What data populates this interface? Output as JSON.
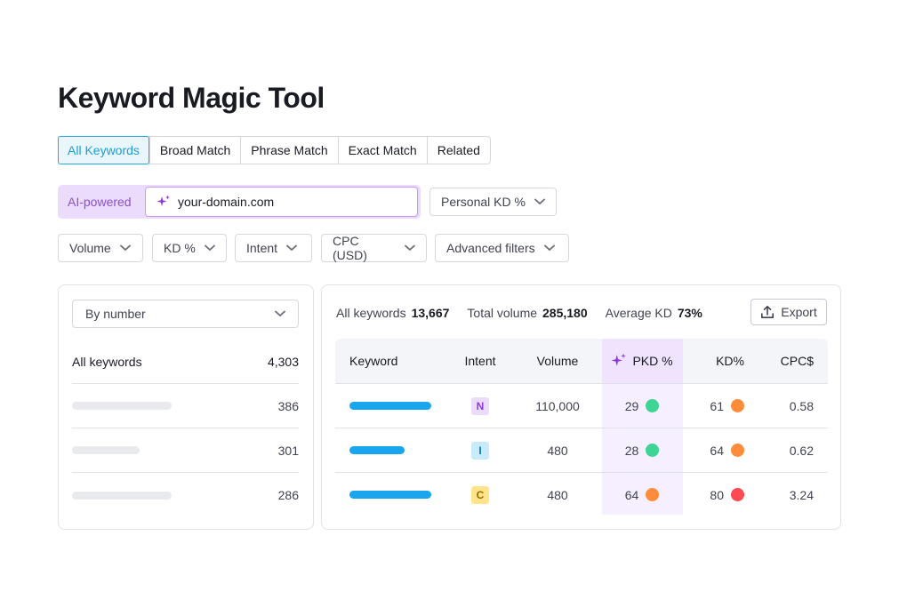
{
  "page": {
    "title": "Keyword Magic Tool"
  },
  "tabs": [
    {
      "label": "All Keywords",
      "active": true
    },
    {
      "label": "Broad Match",
      "active": false
    },
    {
      "label": "Phrase Match",
      "active": false
    },
    {
      "label": "Exact Match",
      "active": false
    },
    {
      "label": "Related",
      "active": false
    }
  ],
  "ai_search": {
    "label": "AI-powered",
    "value": "your-domain.com",
    "icon": "sparkle-icon"
  },
  "personal_kd": {
    "label": "Personal KD %"
  },
  "filters": {
    "volume": "Volume",
    "kd": "KD %",
    "intent": "Intent",
    "cpc": "CPC (USD)",
    "advanced": "Advanced filters"
  },
  "left_panel": {
    "sort_label": "By number",
    "total_label": "All keywords",
    "total_value": "4,303",
    "groups": [
      {
        "count": "386"
      },
      {
        "count": "301"
      },
      {
        "count": "286"
      }
    ]
  },
  "stats": {
    "all_keywords_label": "All keywords",
    "all_keywords_value": "13,667",
    "total_volume_label": "Total volume",
    "total_volume_value": "285,180",
    "avg_kd_label": "Average KD",
    "avg_kd_value": "73%"
  },
  "export_label": "Export",
  "table": {
    "headers": {
      "keyword": "Keyword",
      "intent": "Intent",
      "volume": "Volume",
      "pkd": "PKD %",
      "kd": "KD%",
      "cpc": "CPC$"
    },
    "rows": [
      {
        "intent": "N",
        "volume": "110,000",
        "pkd": "29",
        "pkd_color": "#3ed494",
        "kd": "61",
        "kd_color": "#ff8c3b",
        "cpc": "0.58"
      },
      {
        "intent": "I",
        "volume": "480",
        "pkd": "28",
        "pkd_color": "#3ed494",
        "kd": "64",
        "kd_color": "#ff8c3b",
        "cpc": "0.62"
      },
      {
        "intent": "C",
        "volume": "480",
        "pkd": "64",
        "pkd_color": "#ff8c3b",
        "kd": "80",
        "kd_color": "#ff4953",
        "cpc": "3.24"
      }
    ]
  },
  "colors": {
    "accent_blue": "#1a9ed9",
    "ai_purple": "#8a4fcf",
    "intent_n_bg": "#ecdcfb",
    "intent_n_fg": "#8a3bd9",
    "intent_i_bg": "#c7ebfb",
    "intent_i_fg": "#1276b8",
    "intent_c_bg": "#ffe48a",
    "intent_c_fg": "#9a6a00"
  }
}
